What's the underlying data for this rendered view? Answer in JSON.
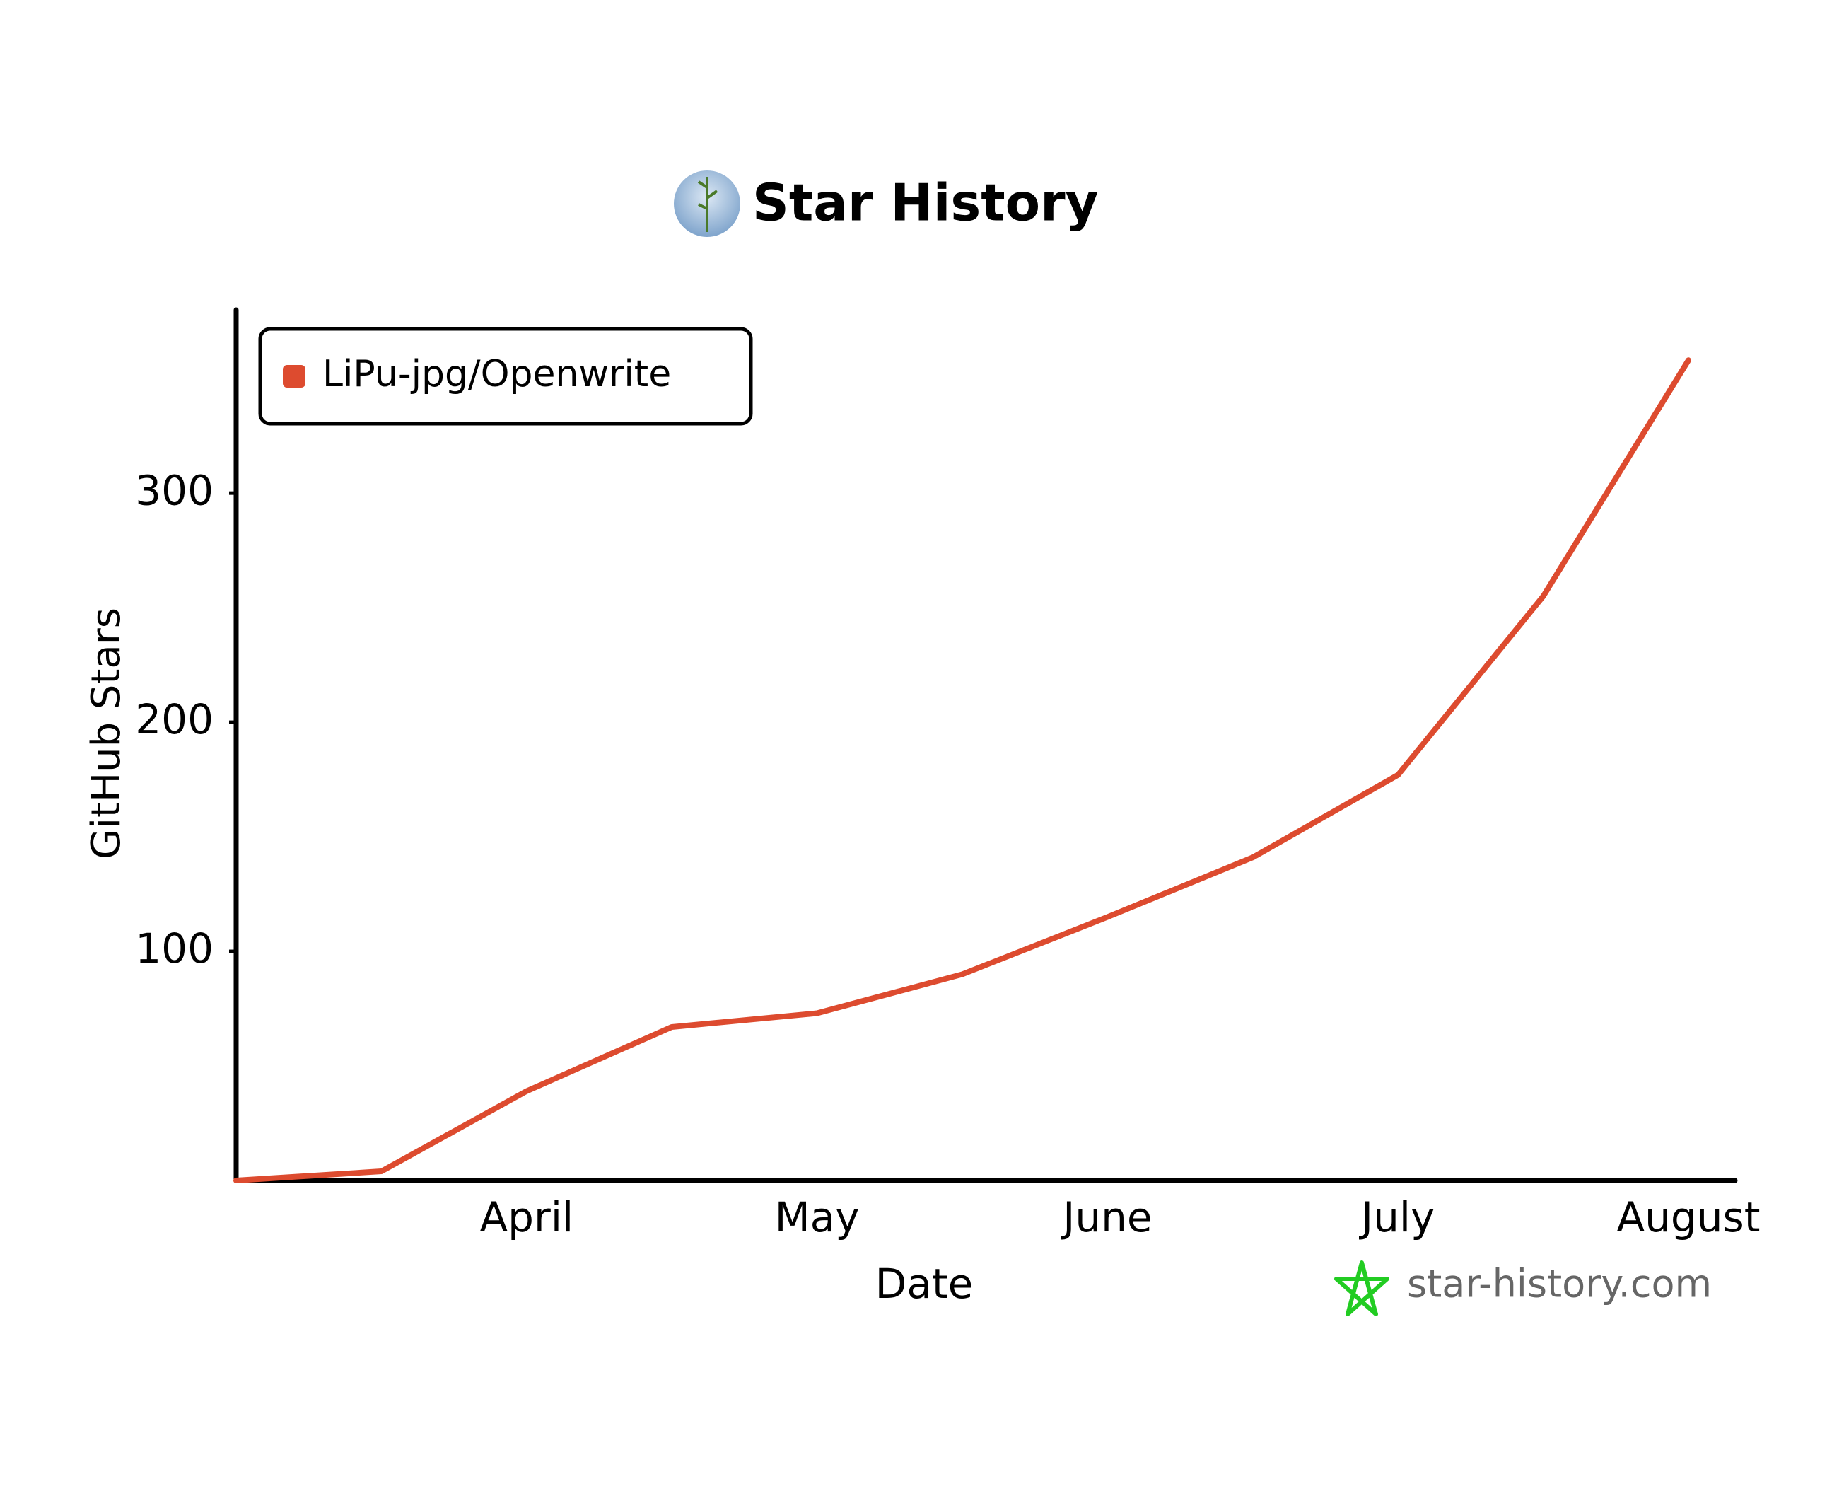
{
  "chart_data": {
    "type": "line",
    "title": "Star History",
    "categories": [
      null,
      null,
      "April",
      null,
      "May",
      null,
      "June",
      null,
      "July",
      null,
      "August"
    ],
    "series": [
      {
        "name": "LiPu-jpg/Openwrite",
        "color": "#dd4b2f",
        "values": [
          0,
          4,
          39,
          67,
          73,
          90,
          115,
          141,
          177,
          255,
          358
        ]
      }
    ],
    "xlabel": "Date",
    "ylabel": "GitHub Stars",
    "ylim": [
      0,
      380
    ],
    "yticks": [
      100,
      200,
      300
    ],
    "legend": "upper left",
    "watermark": "star-history.com"
  }
}
